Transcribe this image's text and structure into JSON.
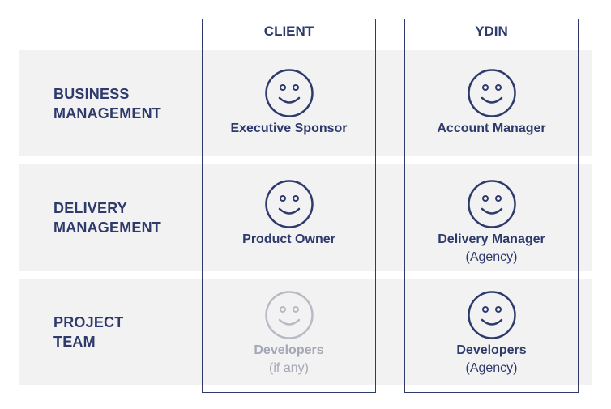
{
  "columns": {
    "client": "CLIENT",
    "ydin": "YDIN"
  },
  "rows": [
    {
      "label_line1": "BUSINESS",
      "label_line2": "MANAGEMENT"
    },
    {
      "label_line1": "DELIVERY",
      "label_line2": "MANAGEMENT"
    },
    {
      "label_line1": "PROJECT",
      "label_line2": "TEAM"
    }
  ],
  "cells": {
    "client_business": {
      "role": "Executive Sponsor",
      "icon": "smiley-face-icon"
    },
    "ydin_business": {
      "role": "Account Manager",
      "icon": "smiley-face-icon"
    },
    "client_delivery": {
      "role": "Product Owner",
      "icon": "smiley-face-icon"
    },
    "ydin_delivery": {
      "role": "Delivery Manager",
      "note": "(Agency)",
      "icon": "smiley-face-icon"
    },
    "client_team": {
      "role": "Developers",
      "note": "(if any)",
      "icon": "smiley-face-icon"
    },
    "ydin_team": {
      "role": "Developers",
      "note": "(Agency)",
      "icon": "smiley-face-icon"
    }
  },
  "colors": {
    "primary": "#2e3a6b",
    "muted": "#a4a8b4",
    "band": "#f2f2f2"
  }
}
